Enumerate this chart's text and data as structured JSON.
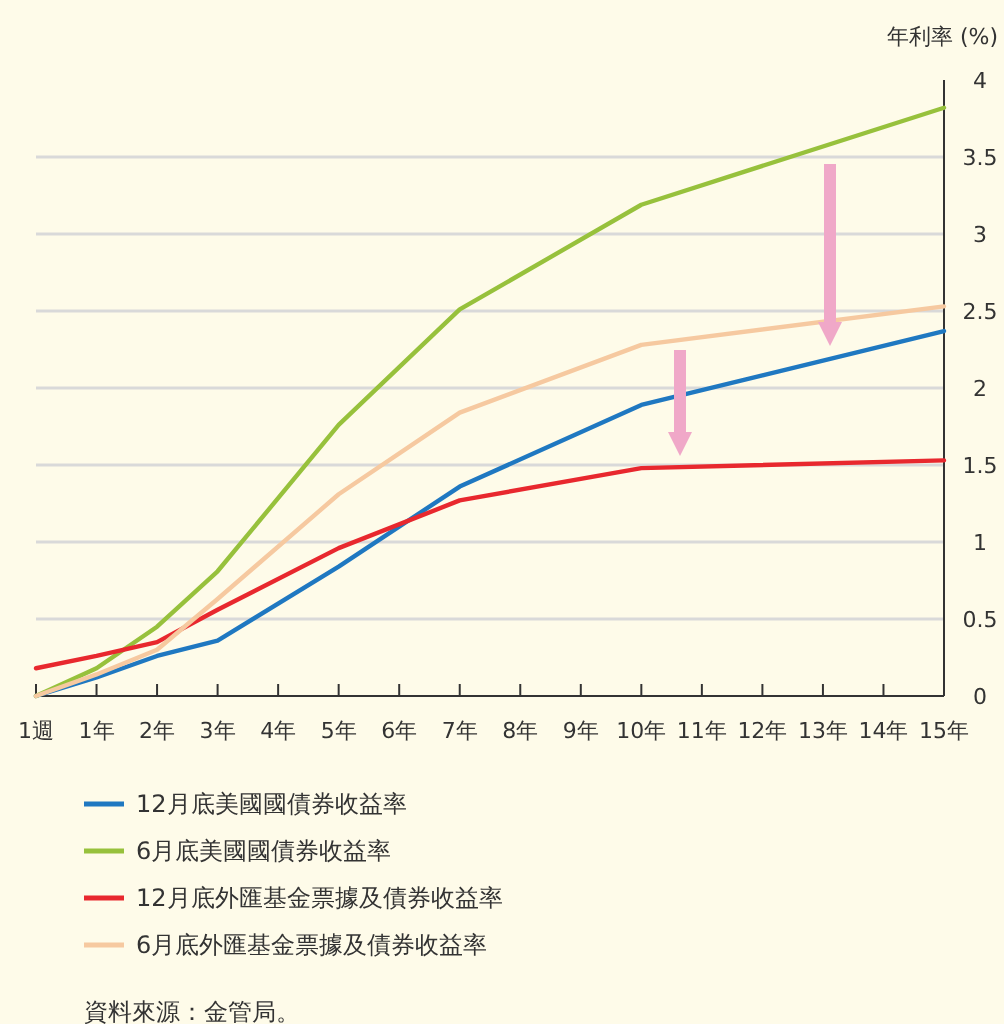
{
  "chart_data": {
    "type": "line",
    "ylabel": "年利率 (%)",
    "categories": [
      "1週",
      "1年",
      "2年",
      "3年",
      "4年",
      "5年",
      "6年",
      "7年",
      "8年",
      "9年",
      "10年",
      "11年",
      "12年",
      "13年",
      "14年",
      "15年"
    ],
    "ylim": [
      0,
      4
    ],
    "yticks": [
      0,
      0.5,
      1,
      1.5,
      2,
      2.5,
      3,
      3.5,
      4
    ],
    "grid": "y",
    "legend": "bottom",
    "marker": "none",
    "line_style": "solid",
    "series": [
      {
        "name": "12月底美國國債券收益率",
        "color": "#1f78c1",
        "x": [
          "1週",
          "1年",
          "2年",
          "3年",
          "5年",
          "7年",
          "10年",
          "15年"
        ],
        "values": [
          0,
          0.12,
          0.26,
          0.36,
          0.84,
          1.36,
          1.89,
          2.37
        ]
      },
      {
        "name": "6月底美國國債券收益率",
        "color": "#97c13c",
        "x": [
          "1週",
          "1年",
          "2年",
          "3年",
          "5年",
          "7年",
          "10年",
          "15年"
        ],
        "values": [
          0,
          0.18,
          0.45,
          0.81,
          1.76,
          2.51,
          3.19,
          3.82
        ]
      },
      {
        "name": "12月底外匯基金票據及債券收益率",
        "color": "#e8282e",
        "x": [
          "1週",
          "1年",
          "2年",
          "3年",
          "5年",
          "7年",
          "10年",
          "15年"
        ],
        "values": [
          0.18,
          0.26,
          0.35,
          0.56,
          0.96,
          1.27,
          1.48,
          1.53
        ]
      },
      {
        "name": "6月底外匯基金票據及債券收益率",
        "color": "#f6c9a0",
        "x": [
          "1週",
          "1年",
          "2年",
          "3年",
          "5年",
          "7年",
          "10年",
          "15年"
        ],
        "values": [
          0,
          0.14,
          0.3,
          0.63,
          1.31,
          1.84,
          2.28,
          2.53
        ]
      }
    ],
    "annotations": [
      "資料來源：金管局。"
    ]
  }
}
